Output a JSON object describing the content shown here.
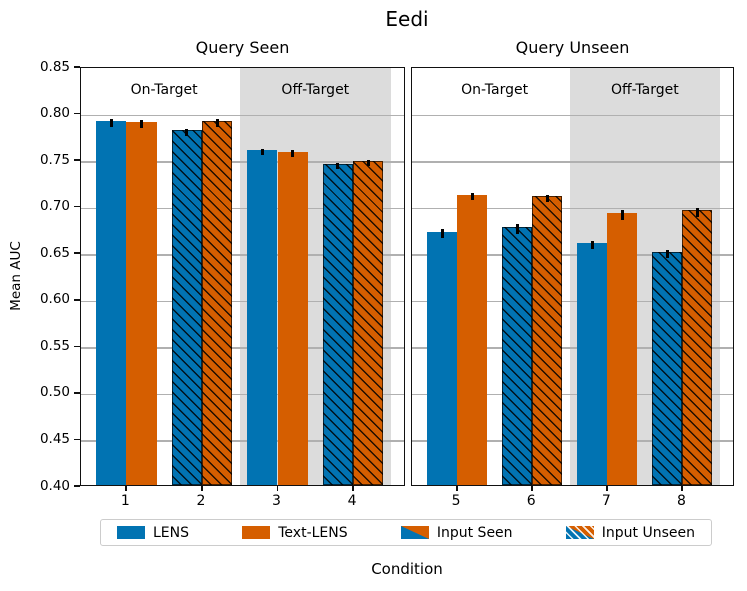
{
  "colors": {
    "lens": "#0173b2",
    "text_lens": "#d55e00",
    "shaded_region": "#dcdcdc",
    "gridline": "#b0b0b0",
    "spine": "#111111"
  },
  "y_axis": {
    "label": "Mean AUC",
    "ticks": [
      {
        "v": 0.85,
        "label": "0.85"
      },
      {
        "v": 0.8,
        "label": "0.80"
      },
      {
        "v": 0.75,
        "label": "0.75"
      },
      {
        "v": 0.7,
        "label": "0.70"
      },
      {
        "v": 0.65,
        "label": "0.65"
      },
      {
        "v": 0.6,
        "label": "0.60"
      },
      {
        "v": 0.55,
        "label": "0.55"
      },
      {
        "v": 0.5,
        "label": "0.50"
      },
      {
        "v": 0.45,
        "label": "0.45"
      },
      {
        "v": 0.4,
        "label": "0.40"
      }
    ]
  },
  "legend": {
    "items": [
      {
        "label": "LENS",
        "swatch": "solid-blue"
      },
      {
        "label": "Text-LENS",
        "swatch": "solid-orange"
      },
      {
        "label": "Input Seen",
        "swatch": "split"
      },
      {
        "label": "Input Unseen",
        "swatch": "split-hatched"
      }
    ]
  },
  "chart_data": {
    "type": "bar",
    "title": "Eedi",
    "xlabel": "Condition",
    "ylabel": "Mean AUC",
    "ylim": [
      0.4,
      0.85
    ],
    "ytick_step": 0.05,
    "grid": true,
    "legend_position": "bottom",
    "legend_labels": [
      "LENS",
      "Text-LENS",
      "Input Seen",
      "Input Unseen"
    ],
    "hatch_meaning": {
      "solid_bars": "Input Seen",
      "hatched_bars": "Input Unseen"
    },
    "panels": [
      {
        "title": "Query Seen",
        "xlim": [
          0.4,
          4.7
        ],
        "categories": [
          1,
          2,
          3,
          4
        ],
        "hatched": [
          false,
          true,
          false,
          true
        ],
        "regions": [
          {
            "label": "On-Target",
            "span": [
              0.4,
              2.5
            ],
            "label_x": 1.5,
            "shaded": false
          },
          {
            "label": "Off-Target",
            "span": [
              2.5,
              4.5
            ],
            "label_x": 3.5,
            "shaded": true
          }
        ],
        "series": [
          {
            "name": "LENS",
            "color_key": "lens",
            "values": [
              0.791,
              0.781,
              0.76,
              0.745
            ],
            "errors": [
              0.004,
              0.004,
              0.003,
              0.003
            ]
          },
          {
            "name": "Text-LENS",
            "color_key": "text_lens",
            "values": [
              0.79,
              0.791,
              0.758,
              0.748
            ],
            "errors": [
              0.004,
              0.004,
              0.004,
              0.003
            ]
          }
        ]
      },
      {
        "title": "Query Unseen",
        "xlim": [
          4.4,
          8.7
        ],
        "categories": [
          5,
          6,
          7,
          8
        ],
        "hatched": [
          false,
          true,
          false,
          true
        ],
        "regions": [
          {
            "label": "On-Target",
            "span": [
              4.4,
              6.5
            ],
            "label_x": 5.5,
            "shaded": false
          },
          {
            "label": "Off-Target",
            "span": [
              6.5,
              8.5
            ],
            "label_x": 7.5,
            "shaded": true
          }
        ],
        "series": [
          {
            "name": "LENS",
            "color_key": "lens",
            "values": [
              0.672,
              0.677,
              0.66,
              0.65
            ],
            "errors": [
              0.005,
              0.005,
              0.004,
              0.004
            ]
          },
          {
            "name": "Text-LENS",
            "color_key": "text_lens",
            "values": [
              0.712,
              0.71,
              0.692,
              0.695
            ],
            "errors": [
              0.004,
              0.004,
              0.005,
              0.005
            ]
          }
        ]
      }
    ]
  }
}
